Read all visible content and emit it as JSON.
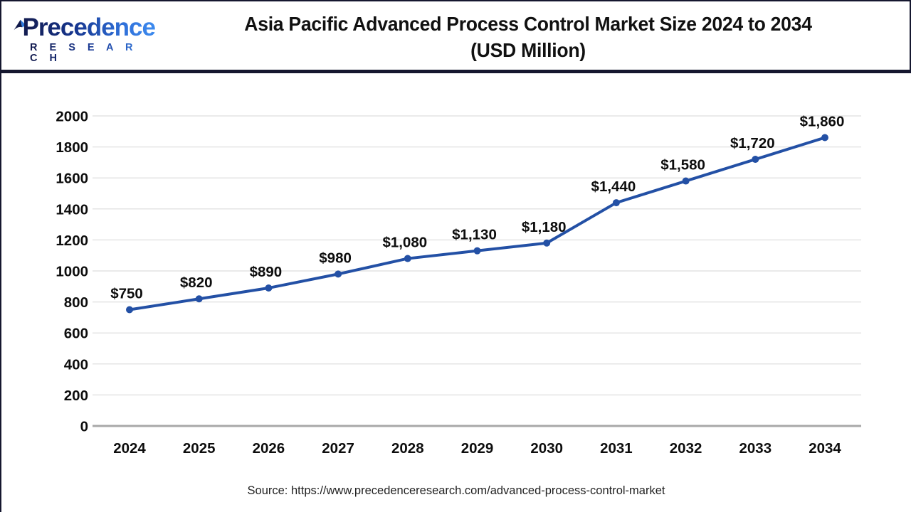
{
  "header": {
    "logo": {
      "name": "Precedence",
      "subtitle": "R E S E A R C H",
      "icon": "precedence-sail-icon",
      "gradient_start": "#131b4e",
      "gradient_end": "#3d8bef"
    },
    "title_line1": "Asia Pacific Advanced Process Control Market Size 2024 to 2034",
    "title_line2": "(USD Million)"
  },
  "chart_data": {
    "type": "line",
    "title": "Asia Pacific Advanced Process Control Market Size 2024 to 2034 (USD Million)",
    "categories": [
      "2024",
      "2025",
      "2026",
      "2027",
      "2028",
      "2029",
      "2030",
      "2031",
      "2032",
      "2033",
      "2034"
    ],
    "series": [
      {
        "name": "Asia Pacific Advanced Process Control Market Size",
        "values": [
          750,
          820,
          890,
          980,
          1080,
          1130,
          1180,
          1440,
          1580,
          1720,
          1860
        ],
        "point_labels": [
          "$750",
          "$820",
          "$890",
          "$980",
          "$1,080",
          "$1,130",
          "$1,180",
          "$1,440",
          "$1,580",
          "$1,720",
          "$1,860"
        ]
      }
    ],
    "xlabel": "",
    "ylabel": "",
    "ylim": [
      0,
      2000
    ],
    "yticks": [
      0,
      200,
      400,
      600,
      800,
      1000,
      1200,
      1400,
      1600,
      1800,
      2000
    ],
    "grid": true,
    "legend": "none",
    "line_color": "#2350a5",
    "marker_color": "#2350a5",
    "gridline_color": "#e4e4e4",
    "zero_axis_color": "#a8a8a8",
    "label_color": "#0d0d0d"
  },
  "footer": {
    "source": "Source: https://www.precedenceresearch.com/advanced-process-control-market"
  }
}
